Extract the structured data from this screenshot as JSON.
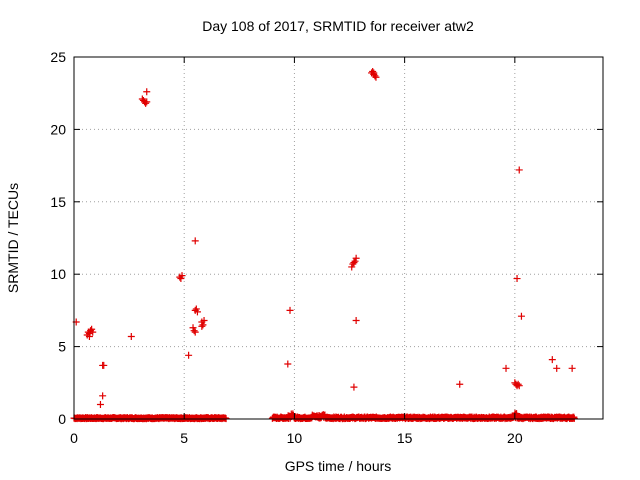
{
  "chart_data": {
    "type": "scatter",
    "title": "Day 108 of 2017, SRMTID for receiver atw2",
    "xlabel": "GPS time / hours",
    "ylabel": "SRMTID / TECUs",
    "xlim": [
      0,
      24
    ],
    "ylim": [
      0,
      25
    ],
    "x_ticks": [
      0,
      5,
      10,
      15,
      20
    ],
    "x_tick_labels": [
      "0",
      "5",
      "10",
      "15",
      "20"
    ],
    "y_ticks": [
      0,
      5,
      10,
      15,
      20,
      25
    ],
    "y_tick_labels": [
      "0",
      "5",
      "10",
      "15",
      "20",
      "25"
    ],
    "grid": true,
    "marker": "+",
    "marker_color": "#e00000",
    "baseline_segments": [
      {
        "x_start": 0.0,
        "x_end": 6.9,
        "y_typical": 0.05
      },
      {
        "x_start": 9.0,
        "x_end": 22.7,
        "y_typical": 0.07
      }
    ],
    "series": [
      {
        "name": "SRMTID",
        "points": [
          [
            0.1,
            6.7
          ],
          [
            0.6,
            5.8
          ],
          [
            0.65,
            6.0
          ],
          [
            0.7,
            5.9
          ],
          [
            0.75,
            6.1
          ],
          [
            0.8,
            6.2
          ],
          [
            0.85,
            6.0
          ],
          [
            0.7,
            5.7
          ],
          [
            1.2,
            1.0
          ],
          [
            1.3,
            1.6
          ],
          [
            1.3,
            3.7
          ],
          [
            1.35,
            3.7
          ],
          [
            2.6,
            5.7
          ],
          [
            3.1,
            22.1
          ],
          [
            3.15,
            22.0
          ],
          [
            3.2,
            21.9
          ],
          [
            3.25,
            21.8
          ],
          [
            3.3,
            21.9
          ],
          [
            3.3,
            22.6
          ],
          [
            4.8,
            9.8
          ],
          [
            4.85,
            9.7
          ],
          [
            4.9,
            9.9
          ],
          [
            5.2,
            4.4
          ],
          [
            5.4,
            6.3
          ],
          [
            5.45,
            6.1
          ],
          [
            5.5,
            12.3
          ],
          [
            5.5,
            7.5
          ],
          [
            5.55,
            7.6
          ],
          [
            5.6,
            7.4
          ],
          [
            5.5,
            6.0
          ],
          [
            5.8,
            6.7
          ],
          [
            5.85,
            6.5
          ],
          [
            5.9,
            6.8
          ],
          [
            5.8,
            6.4
          ],
          [
            9.7,
            3.8
          ],
          [
            9.8,
            7.5
          ],
          [
            12.7,
            2.2
          ],
          [
            12.6,
            10.5
          ],
          [
            12.65,
            10.7
          ],
          [
            12.7,
            10.8
          ],
          [
            12.75,
            10.9
          ],
          [
            12.8,
            11.1
          ],
          [
            12.8,
            6.8
          ],
          [
            13.5,
            23.9
          ],
          [
            13.55,
            24.0
          ],
          [
            13.6,
            23.8
          ],
          [
            13.65,
            23.7
          ],
          [
            13.7,
            23.6
          ],
          [
            13.6,
            23.9
          ],
          [
            17.5,
            2.4
          ],
          [
            19.6,
            3.5
          ],
          [
            20.0,
            2.5
          ],
          [
            20.05,
            2.4
          ],
          [
            20.1,
            2.3
          ],
          [
            20.15,
            2.4
          ],
          [
            20.2,
            2.3
          ],
          [
            20.1,
            9.7
          ],
          [
            20.2,
            17.2
          ],
          [
            20.3,
            7.1
          ],
          [
            21.7,
            4.1
          ],
          [
            21.9,
            3.5
          ],
          [
            22.6,
            3.5
          ]
        ]
      }
    ]
  }
}
